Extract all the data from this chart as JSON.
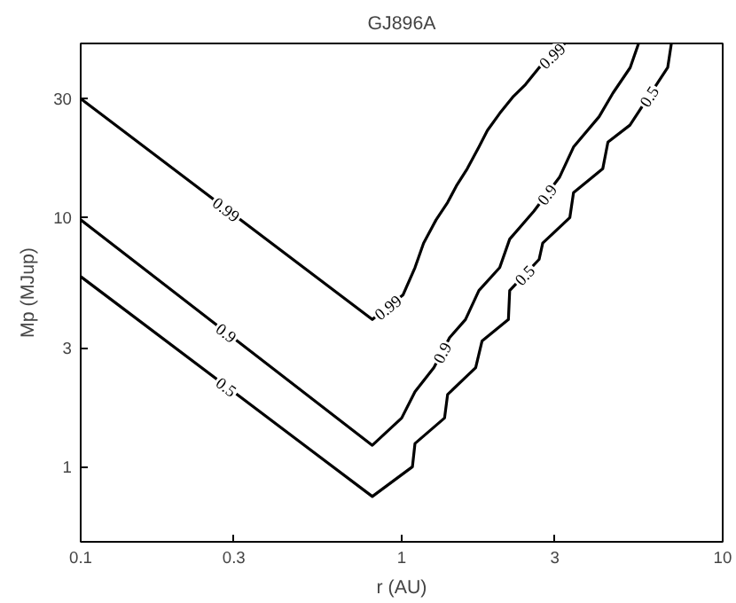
{
  "chart_data": {
    "type": "line",
    "title": "GJ896A",
    "xlabel": "r (AU)",
    "ylabel": "Mp (MJup)",
    "log": "xy",
    "xlim": [
      0.1,
      10
    ],
    "ylim": [
      0.5,
      50
    ],
    "xticks": [
      0.1,
      0.3,
      1,
      3,
      10
    ],
    "yticks": [
      1,
      3,
      10,
      30
    ],
    "grid": false,
    "marker": "none",
    "line_style": "solid",
    "series": [
      {
        "name": "0.99",
        "color": "#000000",
        "x": [
          0.1,
          0.81,
          1.01,
          1.1,
          1.17,
          1.28,
          1.39,
          1.48,
          1.6,
          1.74,
          1.85,
          2.02,
          2.23,
          2.43,
          2.68,
          3.22
        ],
        "values": [
          30,
          3.9,
          4.9,
          6.3,
          7.9,
          9.8,
          11.5,
          13.4,
          15.7,
          19.2,
          22.4,
          26.2,
          30.7,
          34.2,
          40,
          50
        ]
      },
      {
        "name": "0.9",
        "color": "#000000",
        "x": [
          0.1,
          0.81,
          1.0,
          1.1,
          1.26,
          1.41,
          1.58,
          1.74,
          2.02,
          2.17,
          2.58,
          3.1,
          3.43,
          4.12,
          4.55,
          5.15,
          5.47
        ],
        "values": [
          9.8,
          1.22,
          1.57,
          2.0,
          2.5,
          3.3,
          3.9,
          5.1,
          6.3,
          8.2,
          10.6,
          14.5,
          19.2,
          25.4,
          31.6,
          40,
          50
        ]
      },
      {
        "name": "0.5",
        "color": "#000000",
        "x": [
          0.1,
          0.81,
          1.08,
          1.1,
          1.36,
          1.39,
          1.7,
          1.78,
          2.15,
          2.17,
          2.68,
          2.75,
          3.34,
          3.43,
          4.23,
          4.39,
          5.14,
          6.74,
          6.92
        ],
        "values": [
          5.8,
          0.76,
          1.0,
          1.24,
          1.57,
          1.95,
          2.5,
          3.2,
          3.9,
          5.1,
          6.8,
          7.9,
          10,
          12.6,
          15.7,
          20.1,
          23.5,
          40,
          50
        ]
      }
    ]
  }
}
